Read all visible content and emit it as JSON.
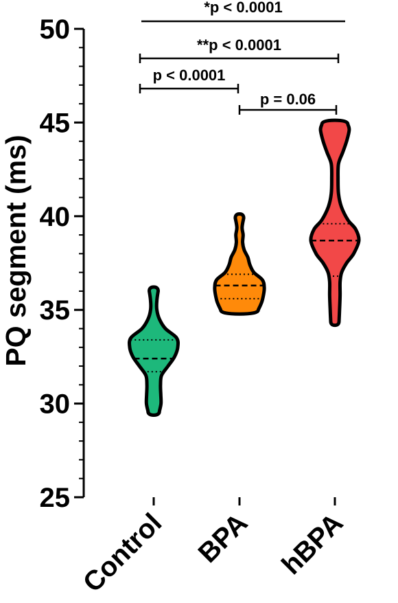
{
  "chart_data": {
    "type": "violin",
    "ylabel": "PQ segment (ms)",
    "ylim": [
      25,
      50
    ],
    "yticks": [
      "25",
      "30",
      "35",
      "40",
      "45",
      "50"
    ],
    "categories": [
      "Control",
      "BPA",
      "hBPA"
    ],
    "colors": {
      "Control": "#1db87b",
      "BPA": "#ff8a0a",
      "hBPA": "#f24848"
    },
    "series": [
      {
        "category": "Control",
        "min": 29.6,
        "max": 36.0,
        "median": 32.4,
        "q1": 31.7,
        "q3": 33.4,
        "density": [
          [
            29.6,
            0.22
          ],
          [
            30.0,
            0.28
          ],
          [
            30.5,
            0.27
          ],
          [
            31.0,
            0.26
          ],
          [
            31.5,
            0.3
          ],
          [
            32.0,
            0.55
          ],
          [
            32.5,
            0.8
          ],
          [
            33.0,
            0.92
          ],
          [
            33.5,
            0.88
          ],
          [
            34.0,
            0.45
          ],
          [
            34.5,
            0.22
          ],
          [
            35.0,
            0.12
          ],
          [
            35.5,
            0.12
          ],
          [
            36.0,
            0.17
          ]
        ]
      },
      {
        "category": "BPA",
        "min": 35.0,
        "max": 39.9,
        "median": 36.3,
        "q1": 35.6,
        "q3": 36.9,
        "density": [
          [
            35.0,
            0.72
          ],
          [
            35.4,
            0.85
          ],
          [
            35.8,
            0.92
          ],
          [
            36.2,
            0.95
          ],
          [
            36.6,
            0.88
          ],
          [
            37.0,
            0.55
          ],
          [
            37.4,
            0.4
          ],
          [
            37.8,
            0.32
          ],
          [
            38.2,
            0.18
          ],
          [
            38.6,
            0.12
          ],
          [
            39.0,
            0.14
          ],
          [
            39.4,
            0.1
          ],
          [
            39.9,
            0.16
          ]
        ]
      },
      {
        "category": "hBPA",
        "min": 34.4,
        "max": 44.9,
        "median": 38.7,
        "q1": 36.8,
        "q3": 39.6,
        "density": [
          [
            34.4,
            0.16
          ],
          [
            35.0,
            0.18
          ],
          [
            35.8,
            0.2
          ],
          [
            36.5,
            0.2
          ],
          [
            37.0,
            0.26
          ],
          [
            37.5,
            0.45
          ],
          [
            38.0,
            0.72
          ],
          [
            38.7,
            0.92
          ],
          [
            39.3,
            0.8
          ],
          [
            39.8,
            0.5
          ],
          [
            40.5,
            0.25
          ],
          [
            41.2,
            0.14
          ],
          [
            42.0,
            0.12
          ],
          [
            42.8,
            0.14
          ],
          [
            43.4,
            0.3
          ],
          [
            44.0,
            0.45
          ],
          [
            44.6,
            0.55
          ],
          [
            44.9,
            0.5
          ]
        ]
      }
    ],
    "significance": [
      {
        "from": "Control",
        "to": "hBPA",
        "label": "*p < 0.0001",
        "bracket": false
      },
      {
        "from": "Control",
        "to": "hBPA",
        "label": "**p < 0.0001",
        "bracket": true
      },
      {
        "from": "Control",
        "to": "BPA",
        "label": "p < 0.0001",
        "bracket": true
      },
      {
        "from": "BPA",
        "to": "hBPA",
        "label": "p = 0.06",
        "bracket": true
      }
    ]
  }
}
